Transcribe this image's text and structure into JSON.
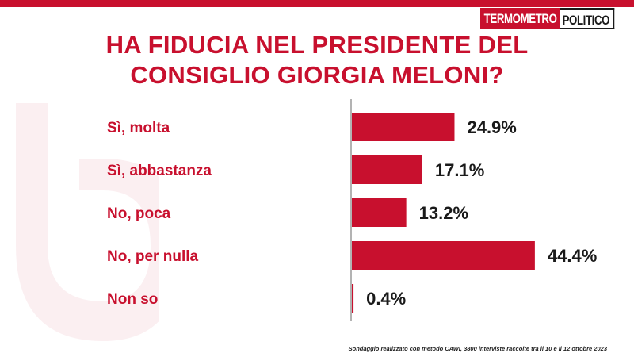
{
  "logo": {
    "part1": "TERMOMETRO",
    "part2": "POLITICO"
  },
  "title_lines": [
    "HA FIDUCIA NEL PRESIDENTE DEL",
    "CONSIGLIO GIORGIA MELONI?"
  ],
  "footer": "Sondaggio realizzato con metodo CAWI, 3800 interviste raccolte tra il 10 e il 12 ottobre 2023",
  "colors": {
    "accent": "#c8102e",
    "text": "#1a1a1a"
  },
  "chart_data": {
    "type": "bar",
    "orientation": "horizontal",
    "title": "HA FIDUCIA NEL PRESIDENTE DEL CONSIGLIO GIORGIA MELONI?",
    "categories": [
      "Sì, molta",
      "Sì, abbastanza",
      "No, poca",
      "No, per nulla",
      "Non so"
    ],
    "values": [
      24.9,
      17.1,
      13.2,
      44.4,
      0.4
    ],
    "value_labels": [
      "24.9%",
      "17.1%",
      "13.2%",
      "44.4%",
      "0.4%"
    ],
    "unit": "%",
    "xlabel": "",
    "ylabel": "",
    "xlim": [
      0,
      50
    ],
    "grid": false,
    "legend": "none"
  }
}
